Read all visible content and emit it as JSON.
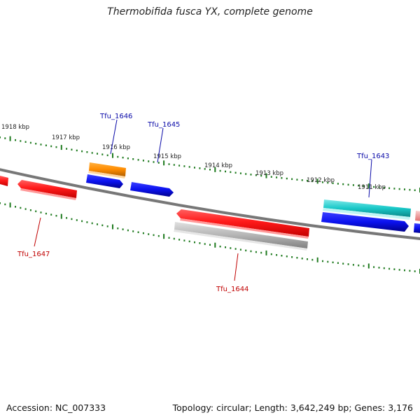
{
  "title": "Thermobifida fusca YX, complete genome",
  "footer": {
    "accession": "Accession: NC_007333",
    "summary": "Topology: circular; Length: 3,642,249 bp; Genes: 3,176"
  },
  "colors": {
    "backbone": "#777777",
    "tick": "#1e7a1e",
    "label_forward": "#0a0aa8",
    "label_reverse": "#c00000",
    "gene_red": "#ff1a1a",
    "gene_blue": "#0b12f0",
    "gene_orange": "#ff8c00",
    "gene_teal": "#19c8c8",
    "gene_grey": "#b4b4b4",
    "gene_pink": "#f7a8a8"
  },
  "kbp_labels": [
    "1918 kbp",
    "1917 kbp",
    "1916 kbp",
    "1915 kbp",
    "1914 kbp",
    "1913 kbp",
    "1912 kbp",
    "1911 kbp"
  ],
  "gene_labels": [
    "Tfu_1646",
    "Tfu_1645",
    "Tfu_1643",
    "Tfu_1647",
    "Tfu_1644"
  ]
}
